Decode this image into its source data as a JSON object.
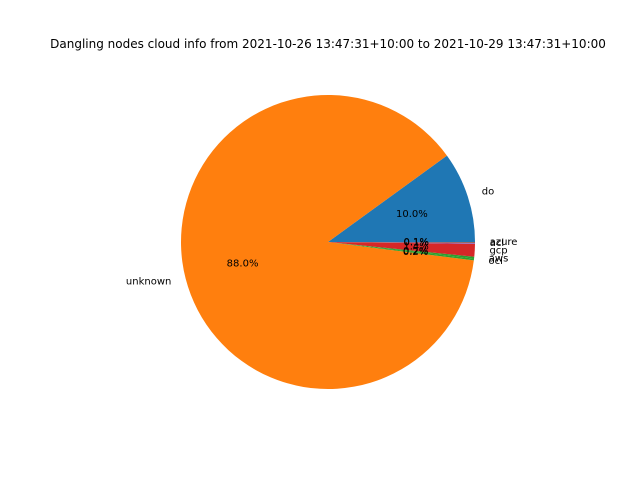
{
  "chart_data": {
    "type": "pie",
    "title": "Dangling nodes cloud info from 2021-10-26 13:47:31+10:00 to 2021-10-29 13:47:31+10:00",
    "slices": [
      {
        "label": "do",
        "value": 10.0,
        "pct_text": "10.0%",
        "color": "#1f77b4"
      },
      {
        "label": "unknown",
        "value": 88.0,
        "pct_text": "88.0%",
        "color": "#ff7f0e"
      },
      {
        "label": "oci",
        "value": 0.2,
        "pct_text": "0.2%",
        "color": "#2ca02c"
      },
      {
        "label": "aws",
        "value": 0.2,
        "pct_text": "0.2%",
        "color": "#2ca02c"
      },
      {
        "label": "gcp",
        "value": 1.4,
        "pct_text": "1.4%",
        "color": "#d62728"
      },
      {
        "label": "acl",
        "value": 0.1,
        "pct_text": "0.1%",
        "color": "#9467bd"
      },
      {
        "label": "azure",
        "value": 0.1,
        "pct_text": "0.1%",
        "color": "#8c564b"
      }
    ]
  }
}
